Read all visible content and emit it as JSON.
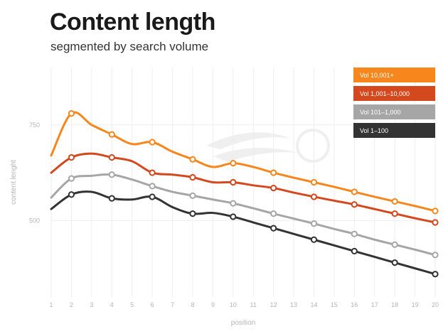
{
  "header": {
    "title": "Content length",
    "subtitle": "segmented by search volume"
  },
  "chart_data": {
    "type": "line",
    "title": "Content length",
    "subtitle": "segmented by search volume",
    "xlabel": "position",
    "ylabel": "content lenght",
    "x": [
      1,
      2,
      3,
      4,
      5,
      6,
      7,
      8,
      9,
      10,
      11,
      12,
      13,
      14,
      15,
      16,
      17,
      18,
      19,
      20
    ],
    "xlim": [
      1,
      20
    ],
    "ylim": [
      300,
      900
    ],
    "yticks": [
      500,
      750
    ],
    "grid": true,
    "legend_position": "top-right",
    "series": [
      {
        "name": "Vol 10,001+",
        "color": "#f7861c",
        "values": [
          670,
          780,
          750,
          725,
          700,
          705,
          680,
          660,
          640,
          650,
          640,
          625,
          612,
          600,
          588,
          575,
          562,
          550,
          538,
          525
        ]
      },
      {
        "name": "Vol 1,001–10,000",
        "color": "#d4481e",
        "values": [
          625,
          665,
          675,
          665,
          655,
          625,
          620,
          613,
          600,
          600,
          592,
          585,
          573,
          562,
          552,
          542,
          530,
          518,
          506,
          495
        ]
      },
      {
        "name": "Vol 101–1,000",
        "color": "#a6a6a6",
        "values": [
          560,
          610,
          617,
          620,
          607,
          590,
          575,
          565,
          555,
          545,
          532,
          518,
          505,
          492,
          478,
          465,
          450,
          437,
          424,
          410
        ]
      },
      {
        "name": "Vol 1–100",
        "color": "#333333",
        "values": [
          530,
          568,
          575,
          558,
          555,
          562,
          535,
          518,
          520,
          510,
          495,
          480,
          465,
          450,
          435,
          420,
          405,
          390,
          375,
          360
        ]
      }
    ]
  }
}
